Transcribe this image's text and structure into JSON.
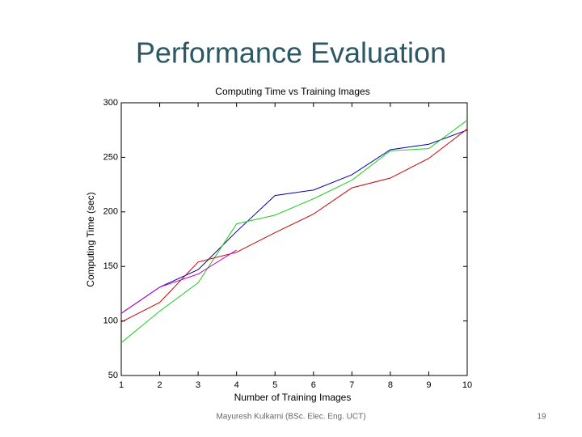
{
  "slide": {
    "title": "Performance Evaluation",
    "footer": "Mayuresh Kulkarni (BSc. Elec. Eng. UCT)",
    "page_number": "19"
  },
  "chart_data": {
    "type": "line",
    "title": "Computing Time vs Training Images",
    "x_label": "Number of Training Images",
    "y_label": "Computing Time (sec)",
    "x": [
      1,
      2,
      3,
      4,
      5,
      6,
      7,
      8,
      9,
      10
    ],
    "series": [
      {
        "color": "#0000aa",
        "values": [
          107,
          131,
          147,
          182,
          215,
          220,
          234,
          257,
          262,
          275
        ]
      },
      {
        "color": "#22cc22",
        "values": [
          80,
          109,
          135,
          189,
          197,
          212,
          229,
          256,
          258,
          284
        ]
      },
      {
        "color": "#cc0000",
        "values": [
          99,
          117,
          154,
          163,
          181,
          198,
          222,
          231,
          249,
          276
        ]
      },
      {
        "color": "#cc00cc",
        "values": [
          107,
          131,
          143,
          165,
          null,
          null,
          null,
          null,
          null,
          null
        ]
      }
    ],
    "xlim": [
      1,
      10
    ],
    "xticks": [
      1,
      2,
      3,
      4,
      5,
      6,
      7,
      8,
      9,
      10
    ],
    "ylim": [
      50,
      300
    ],
    "yticks": [
      50,
      100,
      150,
      200,
      250,
      300
    ],
    "grid": false
  }
}
